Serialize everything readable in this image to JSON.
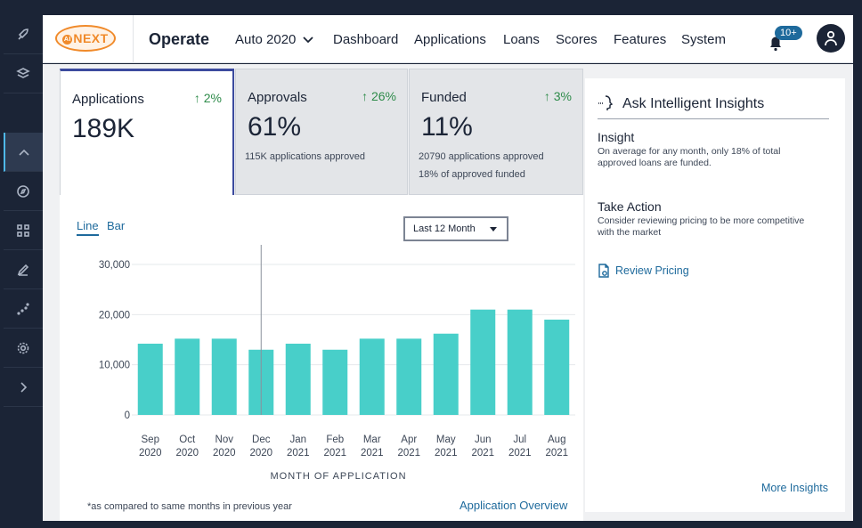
{
  "header": {
    "title": "Operate",
    "dropdown_label": "Auto 2020",
    "nav": [
      "Dashboard",
      "Applications",
      "Loans",
      "Scores",
      "Features",
      "System"
    ],
    "notification_count": "10+",
    "logo_ai": "AI",
    "logo_text": "NEXT"
  },
  "sidebar": {
    "items": [
      "rocket-icon",
      "layers-icon",
      "chevron-up-icon",
      "compass-icon",
      "grid-icon",
      "pencil-icon",
      "scatter-icon",
      "gear-icon",
      "chevron-right-icon"
    ],
    "active_index": 2
  },
  "kpis": [
    {
      "label": "Applications",
      "delta": "↑ 2%",
      "value": "189K",
      "sub": []
    },
    {
      "label": "Approvals",
      "delta": "↑ 26%",
      "value": "61%",
      "sub": [
        "115K applications approved"
      ]
    },
    {
      "label": "Funded",
      "delta": "↑ 3%",
      "value": "11%",
      "sub": [
        "20790 applications approved",
        "18% of approved funded"
      ]
    }
  ],
  "chart_tabs": {
    "line": "Line",
    "bar": "Bar"
  },
  "period_select": "Last 12 Month",
  "chart_data": {
    "type": "bar",
    "categories": [
      [
        "Sep",
        "2020"
      ],
      [
        "Oct",
        "2020"
      ],
      [
        "Nov",
        "2020"
      ],
      [
        "Dec",
        "2020"
      ],
      [
        "Jan",
        "2021"
      ],
      [
        "Feb",
        "2021"
      ],
      [
        "Mar",
        "2021"
      ],
      [
        "Apr",
        "2021"
      ],
      [
        "May",
        "2021"
      ],
      [
        "Jun",
        "2021"
      ],
      [
        "Jul",
        "2021"
      ],
      [
        "Aug",
        "2021"
      ]
    ],
    "values": [
      14200,
      15200,
      15200,
      13000,
      14200,
      13000,
      15200,
      15200,
      16200,
      21000,
      21000,
      19000
    ],
    "xlabel": "MONTH OF APPLICATION",
    "ylabel": "",
    "ylim": [
      0,
      30000
    ],
    "yticks": [
      0,
      10000,
      20000,
      30000
    ],
    "ytick_labels": [
      "0",
      "10,000",
      "20,000",
      "30,000"
    ],
    "bar_color": "#48cfc9",
    "grid": true,
    "marker_category": "Dec"
  },
  "footnote": "*as compared to same months in previous year",
  "app_overview_link": "Application Overview",
  "insights": {
    "title": "Ask Intelligent Insights",
    "insight_heading": "Insight",
    "insight_text": "On average for any month, only 18% of total approved loans are funded.",
    "action_heading": "Take Action",
    "action_text": "Consider reviewing pricing to be more competitive with the market",
    "review_link": "Review Pricing",
    "more_link": "More Insights"
  },
  "colors": {
    "accent": "#1e6a9c",
    "positive": "#2e8b4a",
    "logo": "#f08a2a",
    "dark": "#1b2436"
  }
}
